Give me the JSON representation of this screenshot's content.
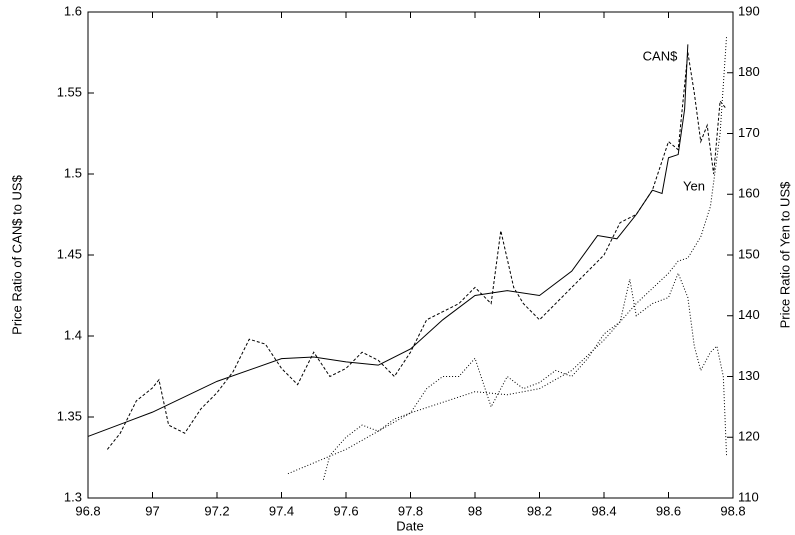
{
  "chart_data": {
    "type": "line",
    "xlabel": "Date",
    "ylabel": "Price Ratio of CAN$ to US$",
    "y2label": "Price Ratio of Yen to US$",
    "xlim": [
      96.8,
      98.8
    ],
    "xticks": [
      96.8,
      97,
      97.2,
      97.4,
      97.6,
      97.8,
      98,
      98.2,
      98.4,
      98.6,
      98.8
    ],
    "ylim": [
      1.3,
      1.6
    ],
    "yticks": [
      1.3,
      1.35,
      1.4,
      1.45,
      1.5,
      1.55,
      1.6
    ],
    "y2lim": [
      110,
      190
    ],
    "y2ticks": [
      110,
      120,
      130,
      140,
      150,
      160,
      170,
      180,
      190
    ],
    "annotations": [
      "CAN$",
      "Yen"
    ],
    "series": [
      {
        "color": "#000000",
        "style": "solid",
        "x": [
          96.8,
          97.0,
          97.2,
          97.4,
          97.5,
          97.6,
          97.7,
          97.8,
          97.9,
          98.0,
          98.1,
          98.2,
          98.3,
          98.38,
          98.44,
          98.5,
          98.55,
          98.58,
          98.6,
          98.63,
          98.65,
          98.66
        ],
        "values": [
          1.338,
          1.353,
          1.372,
          1.386,
          1.387,
          1.384,
          1.382,
          1.392,
          1.41,
          1.425,
          1.428,
          1.425,
          1.44,
          1.462,
          1.46,
          1.475,
          1.49,
          1.488,
          1.51,
          1.512,
          1.54,
          1.58
        ]
      },
      {
        "color": "#000000",
        "style": "dashed",
        "x": [
          96.86,
          96.9,
          96.95,
          97.0,
          97.02,
          97.05,
          97.1,
          97.15,
          97.2,
          97.25,
          97.3,
          97.35,
          97.4,
          97.45,
          97.5,
          97.55,
          97.6,
          97.65,
          97.7,
          97.75,
          97.8,
          97.85,
          97.9,
          97.95,
          98.0,
          98.05,
          98.08,
          98.12,
          98.15,
          98.2,
          98.25,
          98.3,
          98.35,
          98.4,
          98.45,
          98.5,
          98.55,
          98.6,
          98.63,
          98.66,
          98.68,
          98.7,
          98.72,
          98.74,
          98.76,
          98.78
        ],
        "values": [
          1.33,
          1.34,
          1.36,
          1.368,
          1.373,
          1.345,
          1.34,
          1.355,
          1.365,
          1.378,
          1.398,
          1.395,
          1.38,
          1.37,
          1.39,
          1.375,
          1.38,
          1.39,
          1.385,
          1.375,
          1.39,
          1.41,
          1.415,
          1.42,
          1.43,
          1.42,
          1.465,
          1.43,
          1.42,
          1.41,
          1.42,
          1.43,
          1.44,
          1.45,
          1.47,
          1.475,
          1.49,
          1.52,
          1.515,
          1.575,
          1.55,
          1.52,
          1.53,
          1.5,
          1.545,
          1.54
        ]
      },
      {
        "color": "#000000",
        "style": "dotted",
        "axis": "y2",
        "x": [
          97.53,
          97.55,
          97.6,
          97.65,
          97.7,
          97.75,
          97.8,
          97.85,
          97.9,
          97.95,
          98.0,
          98.05,
          98.1,
          98.15,
          98.2,
          98.25,
          98.3,
          98.35,
          98.4,
          98.45,
          98.48,
          98.5,
          98.55,
          98.6,
          98.63,
          98.66,
          98.68,
          98.7,
          98.73,
          98.75,
          98.77,
          98.78
        ],
        "values": [
          113,
          117,
          120,
          122,
          121,
          123,
          124,
          128,
          130,
          130,
          133,
          125,
          130,
          128,
          129,
          131,
          130,
          133,
          137,
          139,
          146,
          140,
          142,
          143,
          147,
          143,
          135,
          131,
          134,
          135,
          130,
          117
        ]
      },
      {
        "color": "#000000",
        "style": "dotted",
        "axis": "y2",
        "x": [
          97.42,
          97.6,
          97.8,
          98.0,
          98.1,
          98.2,
          98.3,
          98.4,
          98.5,
          98.6,
          98.63,
          98.66,
          98.7,
          98.73,
          98.76,
          98.78
        ],
        "values": [
          114,
          118,
          124,
          127.5,
          127,
          128,
          131,
          136,
          142,
          147,
          149,
          149.5,
          153,
          158,
          170,
          186
        ]
      }
    ]
  }
}
